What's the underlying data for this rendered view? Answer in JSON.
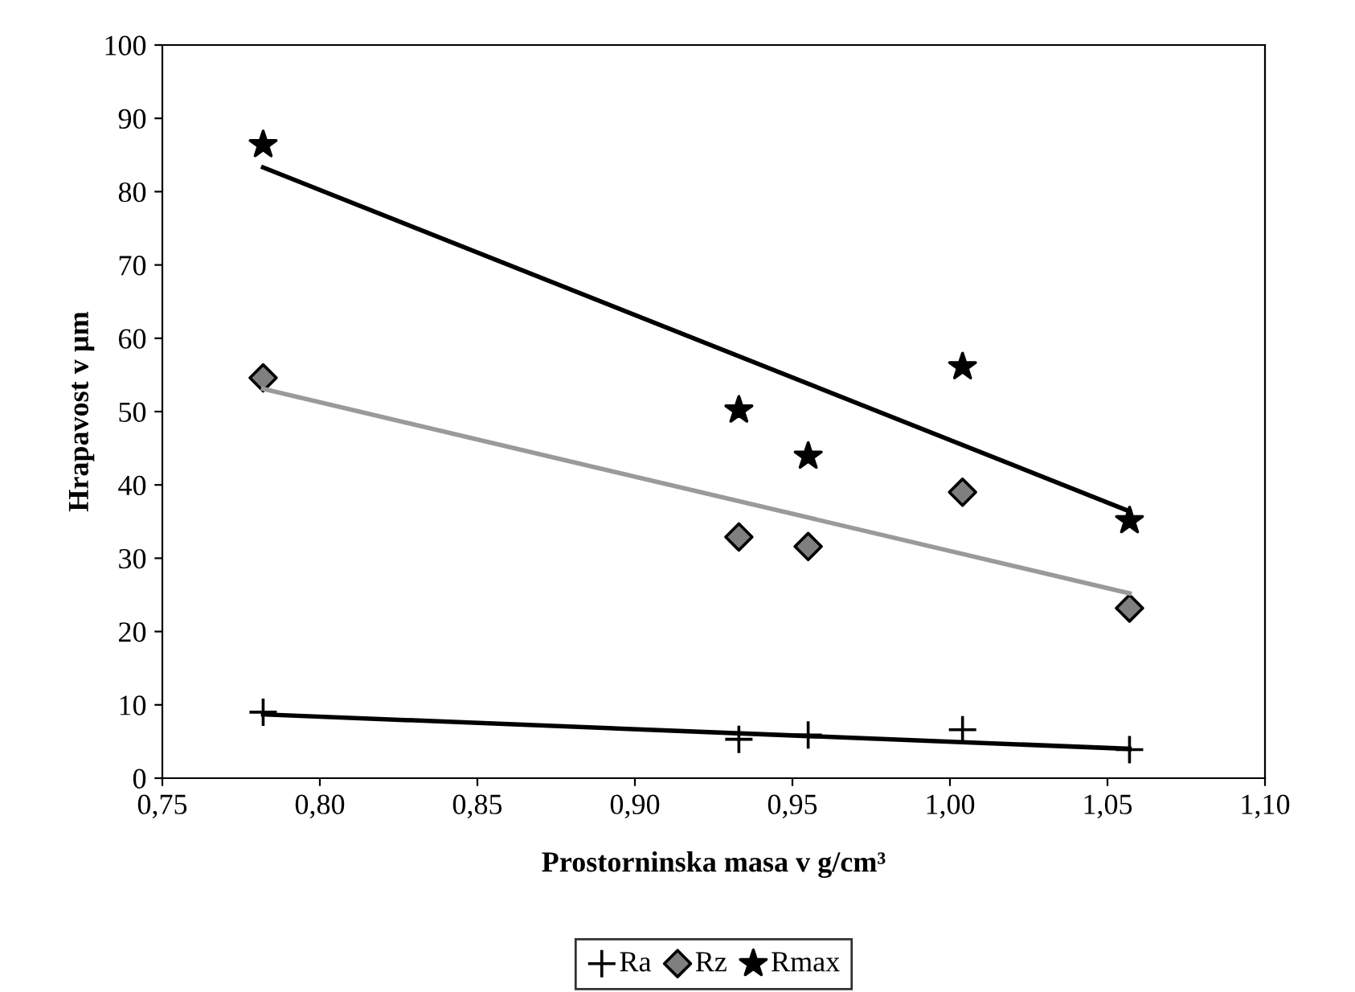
{
  "chart_data": {
    "type": "scatter",
    "xlabel": "Prostorninska masa v g/cm³",
    "ylabel": "Hrapavost v µm",
    "xlim": [
      0.75,
      1.1
    ],
    "xticks": [
      {
        "value": 0.75,
        "label": "0,75"
      },
      {
        "value": 0.8,
        "label": "0,80"
      },
      {
        "value": 0.85,
        "label": "0,85"
      },
      {
        "value": 0.9,
        "label": "0,90"
      },
      {
        "value": 0.95,
        "label": "0,95"
      },
      {
        "value": 1.0,
        "label": "1,00"
      },
      {
        "value": 1.05,
        "label": "1,05"
      },
      {
        "value": 1.1,
        "label": "1,10"
      }
    ],
    "ylim": [
      0,
      100
    ],
    "yticks": [
      0,
      10,
      20,
      30,
      40,
      50,
      60,
      70,
      80,
      90,
      100
    ],
    "grid": false,
    "legend": "bottom",
    "series": [
      {
        "name": "Ra",
        "marker": "cross",
        "color": "#000000",
        "x": [
          0.782,
          0.933,
          0.955,
          1.004,
          1.057
        ],
        "values": [
          9.0,
          5.3,
          5.9,
          6.6,
          3.9
        ]
      },
      {
        "name": "Rz",
        "marker": "diamond",
        "color": "#7f7f7f",
        "x": [
          0.782,
          0.933,
          0.955,
          1.004,
          1.057
        ],
        "values": [
          54.6,
          32.9,
          31.6,
          39.0,
          23.2
        ]
      },
      {
        "name": "Rmax",
        "marker": "star",
        "color": "#000000",
        "x": [
          0.782,
          0.933,
          0.955,
          1.004,
          1.057
        ],
        "values": [
          86.4,
          50.2,
          43.9,
          56.1,
          35.1
        ]
      },
      {
        "type": "line",
        "marker": "none",
        "color": "#000000",
        "x": [
          0.782,
          1.057
        ],
        "values": [
          8.7,
          4.0
        ]
      },
      {
        "type": "line",
        "marker": "none",
        "color": "#9a9a9a",
        "x": [
          0.782,
          1.057
        ],
        "values": [
          53.1,
          25.2
        ]
      },
      {
        "type": "line",
        "marker": "none",
        "color": "#000000",
        "x": [
          0.782,
          1.057
        ],
        "values": [
          83.3,
          36.4
        ]
      }
    ]
  }
}
